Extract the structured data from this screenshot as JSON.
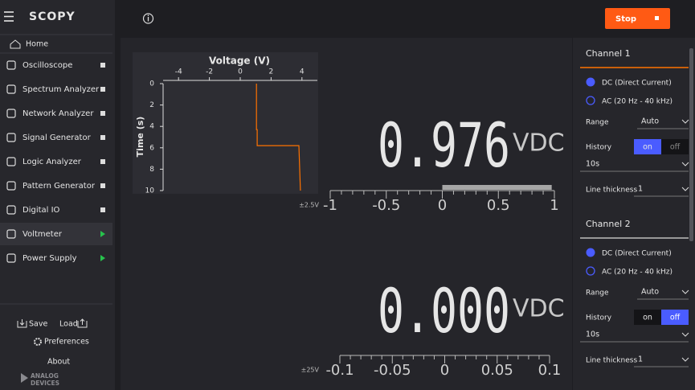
{
  "sidebar": {
    "app_name": "SCOPY",
    "home": "Home",
    "items": [
      {
        "label": "Oscilloscope",
        "indicator": "square"
      },
      {
        "label": "Spectrum Analyzer",
        "indicator": "square"
      },
      {
        "label": "Network Analyzer",
        "indicator": "square"
      },
      {
        "label": "Signal Generator",
        "indicator": "square"
      },
      {
        "label": "Logic Analyzer",
        "indicator": "square"
      },
      {
        "label": "Pattern Generator",
        "indicator": "square"
      },
      {
        "label": "Digital IO",
        "indicator": "square"
      },
      {
        "label": "Voltmeter",
        "indicator": "play",
        "active": true
      },
      {
        "label": "Power Supply",
        "indicator": "play"
      }
    ],
    "save": "Save",
    "load": "Load",
    "preferences": "Preferences",
    "about": "About",
    "brand": [
      "ANALOG",
      "DEVICES"
    ]
  },
  "toolbar": {
    "stop": "Stop"
  },
  "history_chart": {
    "x_label": "Voltage (V)",
    "y_label": "Time (s)",
    "xlim": [
      -5,
      5
    ],
    "xticks": [
      -4,
      -2,
      0,
      2,
      4
    ],
    "ylim": [
      0,
      10
    ],
    "yticks": [
      0,
      2,
      4,
      6,
      8,
      10
    ],
    "time": [
      0,
      4.3,
      4.3,
      5.8,
      5.8,
      10
    ],
    "values": [
      1.05,
      1.05,
      1.1,
      1.1,
      3.8,
      3.9
    ],
    "color": "#ff7200"
  },
  "channels": [
    {
      "reading": {
        "value": 0.976,
        "label": "0.976"
      },
      "unit": "VDC",
      "range_label": "±2.5V",
      "scale_lim": [
        -1,
        1
      ],
      "scale_ticks": [
        -1,
        -0.5,
        0,
        0.5,
        1
      ],
      "color": "#ff7200"
    },
    {
      "reading": {
        "value": 0,
        "label": "0.000"
      },
      "unit": "VDC",
      "range_label": "±25V",
      "scale_lim": [
        -0.1,
        0.1
      ],
      "scale_ticks": [
        -0.1,
        -0.05,
        0,
        0.05,
        0.1
      ],
      "color": "#8e2de2"
    }
  ],
  "settings": [
    {
      "title": "Channel 1",
      "dc": "DC (Direct Current)",
      "ac": "AC (20 Hz - 40 kHz)",
      "range_label": "Range",
      "range": "Auto",
      "history_label": "History",
      "on": "on",
      "off": "off",
      "history_enabled": true,
      "history_length": "10s",
      "line_thickness_label": "Line thickness",
      "line_thickness": "1"
    },
    {
      "title": "Channel 2",
      "dc": "DC (Direct Current)",
      "ac": "AC (20 Hz - 40 kHz)",
      "range_label": "Range",
      "range": "Auto",
      "history_label": "History",
      "on": "on",
      "off": "off",
      "history_enabled": false,
      "history_length": "10s",
      "line_thickness_label": "Line thickness",
      "line_thickness": "1"
    }
  ]
}
